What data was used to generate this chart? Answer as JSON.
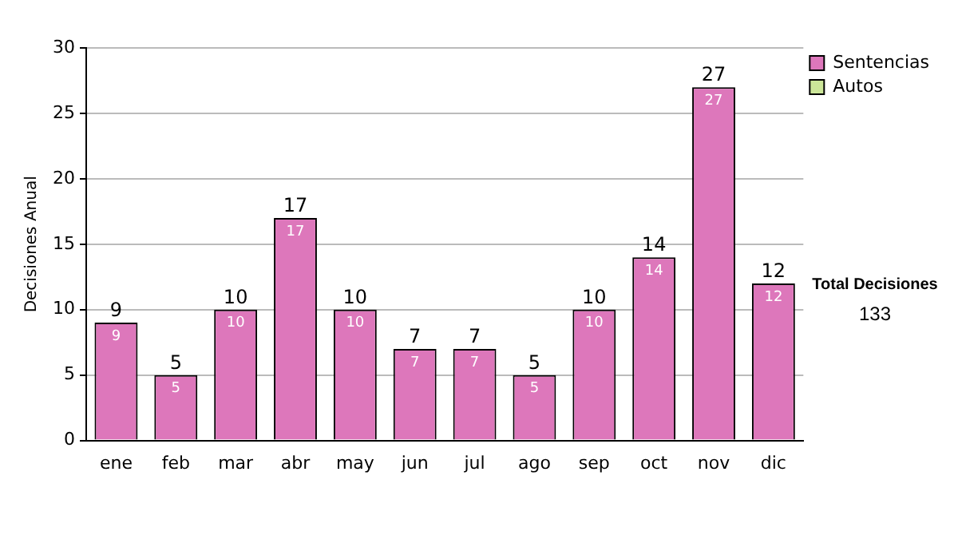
{
  "chart_data": {
    "type": "bar",
    "stacked": true,
    "ylabel": "Decisiones Anual",
    "categories": [
      "ene",
      "feb",
      "mar",
      "abr",
      "may",
      "jun",
      "jul",
      "ago",
      "sep",
      "oct",
      "nov",
      "dic"
    ],
    "series": [
      {
        "name": "Sentencias",
        "color": "#dd77bb",
        "values": [
          9,
          5,
          10,
          17,
          10,
          7,
          7,
          5,
          10,
          14,
          27,
          12
        ],
        "value_labels": [
          "9",
          "5",
          "10",
          "17",
          "10",
          "7",
          "7",
          "5",
          "10",
          "14",
          "27",
          "12"
        ]
      },
      {
        "name": "Autos",
        "color": "#cce699",
        "values": [
          0,
          0,
          0,
          0,
          0,
          0,
          0,
          0,
          0,
          0,
          0,
          0
        ]
      }
    ],
    "ylim": [
      0,
      30
    ],
    "yticks": [
      0,
      5,
      10,
      15,
      20,
      25,
      30
    ],
    "grid": "y",
    "legend": "right",
    "totals": [
      "9",
      "5",
      "10",
      "17",
      "10",
      "7",
      "7",
      "5",
      "10",
      "14",
      "27",
      "12"
    ],
    "annotations": [
      "Total Decisiones",
      "133"
    ]
  }
}
